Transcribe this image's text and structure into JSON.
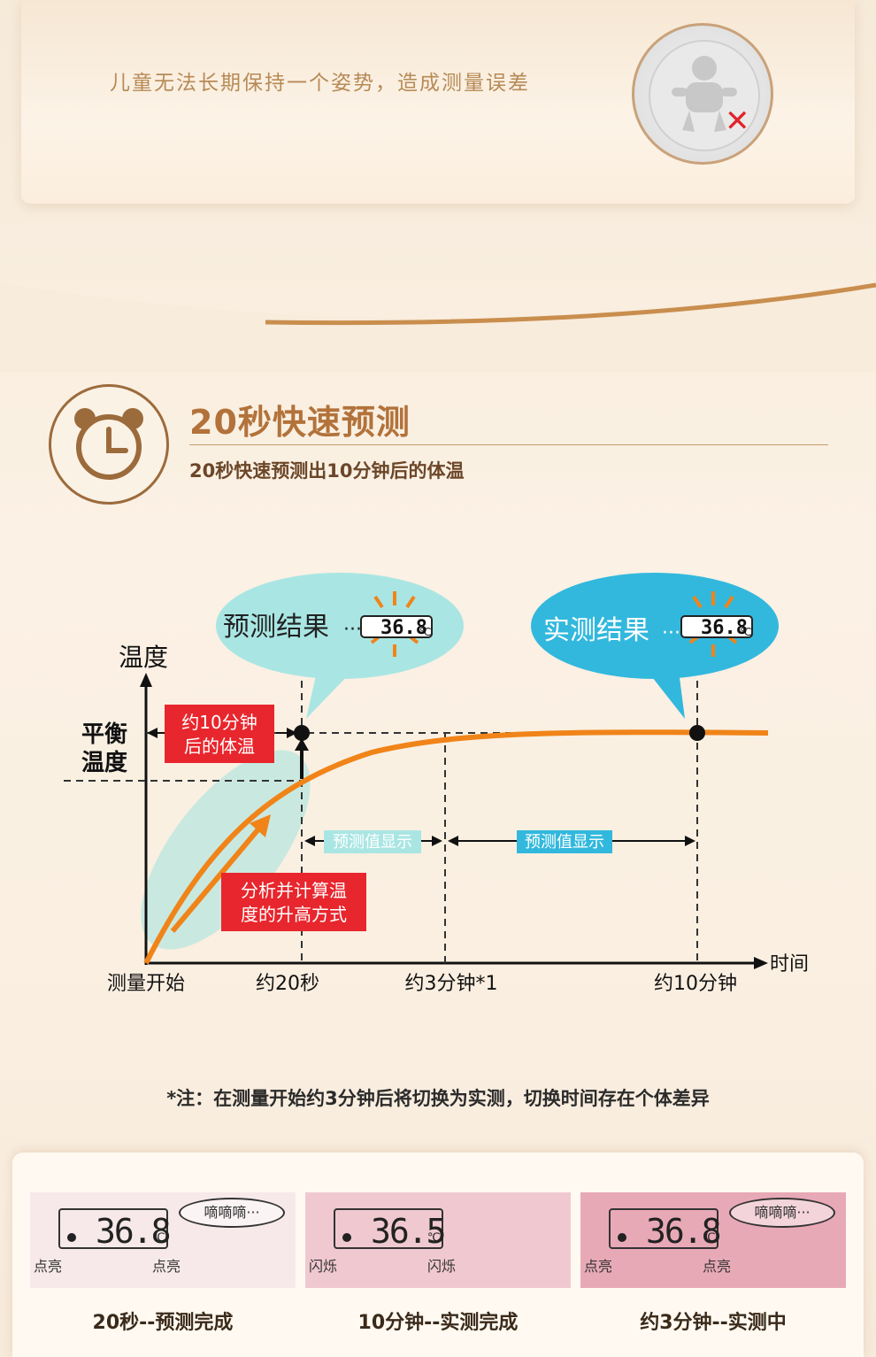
{
  "top": {
    "text": "儿童无法长期保持一个姿势，造成测量误差"
  },
  "section": {
    "title": "20秒快速预测",
    "subtitle": "20秒快速预测出10分钟后的体温"
  },
  "chart": {
    "y_label": "温度",
    "x_label": "时间",
    "balance_label_1": "平衡",
    "balance_label_2": "温度",
    "pred_bubble": "预测结果",
    "real_bubble": "实测结果",
    "lcd_value": "36.8",
    "lcd_unit": "℃",
    "red_box_1a": "约10分钟",
    "red_box_1b": "后的体温",
    "red_box_2a": "分析并计算温",
    "red_box_2b": "度的升高方式",
    "span_1": "预测值显示",
    "span_2": "预测值显示",
    "x_ticks": [
      "测量开始",
      "约20秒",
      "约3分钟*1",
      "约10分钟"
    ]
  },
  "chart_data": {
    "type": "line",
    "title": "",
    "xlabel": "时间",
    "ylabel": "温度",
    "x_ticks": [
      "测量开始",
      "约20秒",
      "约3分钟*1",
      "约10分钟"
    ],
    "series": [
      {
        "name": "",
        "shape": "rising curve approaching equilibrium temperature"
      }
    ],
    "annotations": [
      "预测结果",
      "实测结果",
      "约10分钟后的体温",
      "分析并计算温度的升高方式",
      "预测值显示",
      "平衡温度"
    ]
  },
  "note": "*注：在测量开始约3分钟后将切换为实测，切换时间存在个体差异",
  "panels": [
    {
      "value": "36.8",
      "unit": "℃",
      "left": "点亮",
      "right": "点亮",
      "bubble": "嘀嘀嘀···",
      "caption": "20秒--预测完成"
    },
    {
      "value": "36.5",
      "unit": "℃",
      "left": "闪烁",
      "right": "闪烁",
      "bubble": "",
      "caption": "10分钟--实测完成"
    },
    {
      "value": "36.8",
      "unit": "℃",
      "left": "点亮",
      "right": "点亮",
      "bubble": "嘀嘀嘀···",
      "caption": "约3分钟--实测中"
    }
  ]
}
